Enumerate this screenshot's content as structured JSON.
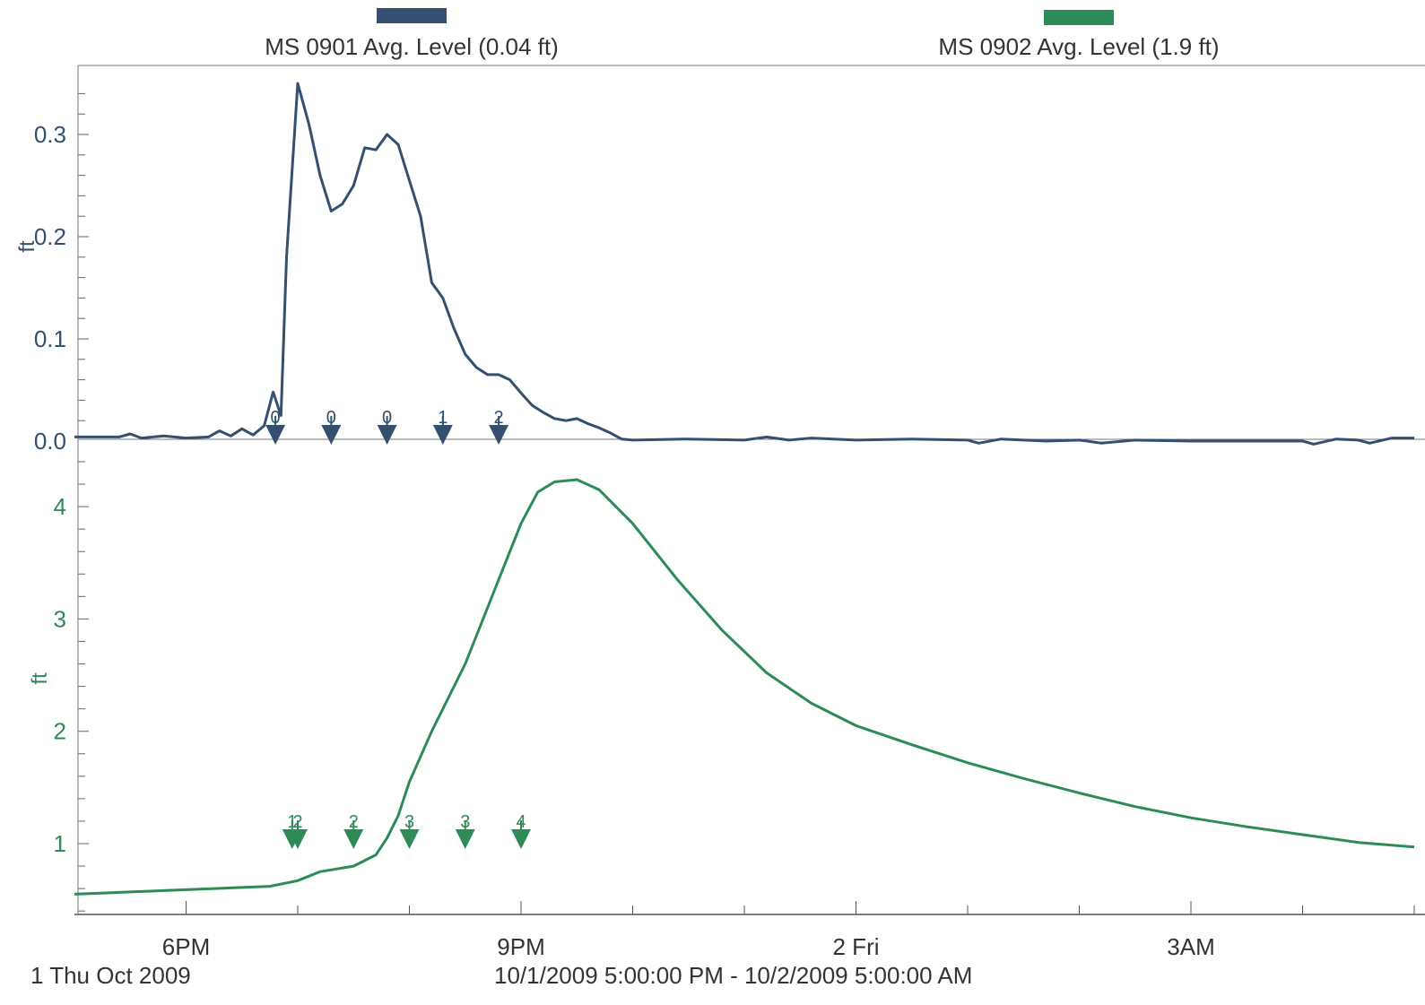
{
  "colors": {
    "series1": "#34506e",
    "series2": "#2e8b57",
    "axis": "#555555"
  },
  "legend": [
    {
      "label": "MS 0901 Avg. Level (0.04 ft)"
    },
    {
      "label": "MS 0902 Avg. Level (1.9 ft)"
    }
  ],
  "footer": {
    "date_label": "1 Thu Oct 2009",
    "range_label": "10/1/2009 5:00:00 PM - 10/2/2009 5:00:00 AM"
  },
  "chart_data": [
    {
      "type": "line",
      "series": [
        {
          "name": "MS 0901 Avg. Level (0.04 ft)",
          "color": "#34506e"
        }
      ],
      "ylabel": "ft",
      "ylim": [
        -0.01,
        0.365
      ],
      "yticks": [
        0.0,
        0.1,
        0.2,
        0.3
      ],
      "ytick_labels": [
        "0.0",
        "0.1",
        "0.2",
        "0.3"
      ],
      "x_unit": "hours after 10/1/2009 5:00 PM",
      "xlim": [
        0,
        12
      ],
      "points": [
        [
          0.0,
          0.004
        ],
        [
          0.4,
          0.004
        ],
        [
          0.5,
          0.007
        ],
        [
          0.6,
          0.003
        ],
        [
          0.8,
          0.005
        ],
        [
          1.0,
          0.003
        ],
        [
          1.2,
          0.004
        ],
        [
          1.3,
          0.01
        ],
        [
          1.4,
          0.005
        ],
        [
          1.5,
          0.012
        ],
        [
          1.6,
          0.006
        ],
        [
          1.7,
          0.015
        ],
        [
          1.78,
          0.048
        ],
        [
          1.85,
          0.025
        ],
        [
          1.9,
          0.18
        ],
        [
          2.0,
          0.35
        ],
        [
          2.1,
          0.31
        ],
        [
          2.2,
          0.26
        ],
        [
          2.3,
          0.225
        ],
        [
          2.4,
          0.232
        ],
        [
          2.5,
          0.25
        ],
        [
          2.6,
          0.287
        ],
        [
          2.7,
          0.285
        ],
        [
          2.8,
          0.3
        ],
        [
          2.9,
          0.29
        ],
        [
          3.0,
          0.255
        ],
        [
          3.1,
          0.22
        ],
        [
          3.2,
          0.155
        ],
        [
          3.3,
          0.14
        ],
        [
          3.4,
          0.11
        ],
        [
          3.5,
          0.085
        ],
        [
          3.6,
          0.072
        ],
        [
          3.7,
          0.065
        ],
        [
          3.8,
          0.065
        ],
        [
          3.9,
          0.06
        ],
        [
          4.0,
          0.047
        ],
        [
          4.1,
          0.035
        ],
        [
          4.2,
          0.028
        ],
        [
          4.3,
          0.022
        ],
        [
          4.4,
          0.02
        ],
        [
          4.5,
          0.022
        ],
        [
          4.6,
          0.017
        ],
        [
          4.7,
          0.013
        ],
        [
          4.8,
          0.008
        ],
        [
          4.9,
          0.002
        ],
        [
          5.0,
          0.001
        ],
        [
          5.5,
          0.002
        ],
        [
          6.0,
          0.001
        ],
        [
          6.2,
          0.004
        ],
        [
          6.4,
          0.001
        ],
        [
          6.6,
          0.003
        ],
        [
          7.0,
          0.001
        ],
        [
          7.5,
          0.002
        ],
        [
          8.0,
          0.001
        ],
        [
          8.1,
          -0.002
        ],
        [
          8.3,
          0.002
        ],
        [
          8.7,
          0.0
        ],
        [
          9.0,
          0.001
        ],
        [
          9.2,
          -0.002
        ],
        [
          9.5,
          0.001
        ],
        [
          10.0,
          0.0
        ],
        [
          10.5,
          0.0
        ],
        [
          11.0,
          0.0
        ],
        [
          11.1,
          -0.003
        ],
        [
          11.3,
          0.002
        ],
        [
          11.5,
          0.001
        ],
        [
          11.6,
          -0.002
        ],
        [
          11.8,
          0.003
        ],
        [
          12.0,
          0.003
        ]
      ],
      "markers": [
        {
          "x": 1.8,
          "label": "0"
        },
        {
          "x": 2.3,
          "label": "0"
        },
        {
          "x": 2.8,
          "label": "0"
        },
        {
          "x": 3.3,
          "label": "1"
        },
        {
          "x": 3.8,
          "label": "2"
        }
      ]
    },
    {
      "type": "line",
      "series": [
        {
          "name": "MS 0902 Avg. Level (1.9 ft)",
          "color": "#2e8b57"
        }
      ],
      "ylabel": "ft",
      "ylim": [
        0.35,
        4.45
      ],
      "yticks": [
        1,
        2,
        3,
        4
      ],
      "ytick_labels": [
        "1",
        "2",
        "3",
        "4"
      ],
      "x_unit": "hours after 10/1/2009 5:00 PM",
      "xlim": [
        0,
        12
      ],
      "xticks": [
        1,
        4,
        7,
        10
      ],
      "xtick_labels": [
        "6PM",
        "9PM",
        "2 Fri",
        "3AM"
      ],
      "points": [
        [
          0.0,
          0.55
        ],
        [
          0.5,
          0.57
        ],
        [
          1.0,
          0.59
        ],
        [
          1.5,
          0.61
        ],
        [
          1.75,
          0.62
        ],
        [
          2.0,
          0.67
        ],
        [
          2.2,
          0.75
        ],
        [
          2.5,
          0.8
        ],
        [
          2.7,
          0.9
        ],
        [
          2.8,
          1.05
        ],
        [
          2.9,
          1.25
        ],
        [
          3.0,
          1.55
        ],
        [
          3.2,
          2.0
        ],
        [
          3.5,
          2.6
        ],
        [
          3.8,
          3.35
        ],
        [
          4.0,
          3.85
        ],
        [
          4.15,
          4.13
        ],
        [
          4.3,
          4.22
        ],
        [
          4.5,
          4.24
        ],
        [
          4.7,
          4.15
        ],
        [
          5.0,
          3.85
        ],
        [
          5.4,
          3.35
        ],
        [
          5.8,
          2.9
        ],
        [
          6.2,
          2.52
        ],
        [
          6.6,
          2.25
        ],
        [
          7.0,
          2.05
        ],
        [
          7.5,
          1.88
        ],
        [
          8.0,
          1.72
        ],
        [
          8.5,
          1.58
        ],
        [
          9.0,
          1.45
        ],
        [
          9.5,
          1.33
        ],
        [
          10.0,
          1.23
        ],
        [
          10.5,
          1.15
        ],
        [
          11.0,
          1.08
        ],
        [
          11.5,
          1.01
        ],
        [
          12.0,
          0.97
        ]
      ],
      "markers": [
        {
          "x": 1.95,
          "label": "1"
        },
        {
          "x": 2.0,
          "label": "2"
        },
        {
          "x": 2.5,
          "label": "2"
        },
        {
          "x": 3.0,
          "label": "3"
        },
        {
          "x": 3.5,
          "label": "3"
        },
        {
          "x": 4.0,
          "label": "4"
        }
      ]
    }
  ]
}
